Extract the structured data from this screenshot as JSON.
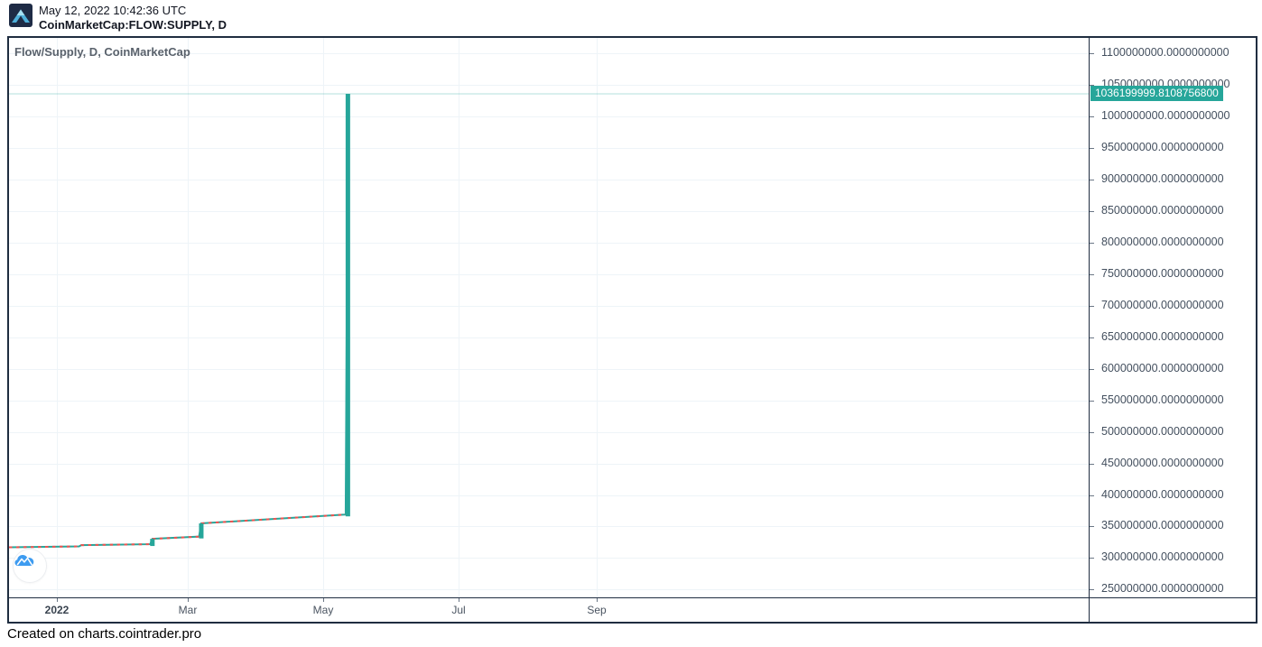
{
  "header": {
    "app_logo_icon": "cointrader-mountain-logo",
    "timestamp": "May 12, 2022 10:42:36 UTC",
    "symbol": "CoinMarketCap:FLOW:SUPPLY, D"
  },
  "chart": {
    "legend": "Flow/Supply, D, CoinMarketCap",
    "price_label": "1036199999.8108756800",
    "watermark_icon": "cointrader-cloud-mountain-logo",
    "y_axis_labels": [
      "1100000000.0000000000",
      "1050000000.0000000000",
      "1000000000.0000000000",
      "950000000.0000000000",
      "900000000.0000000000",
      "850000000.0000000000",
      "800000000.0000000000",
      "750000000.0000000000",
      "700000000.0000000000",
      "650000000.0000000000",
      "600000000.0000000000",
      "550000000.0000000000",
      "500000000.0000000000",
      "450000000.0000000000",
      "400000000.0000000000",
      "350000000.0000000000",
      "300000000.0000000000",
      "250000000.0000000000"
    ],
    "x_axis_ticks": [
      {
        "label": "2022",
        "date": "2022-01-01",
        "emphasis": true
      },
      {
        "label": "Mar",
        "date": "2022-03-01",
        "emphasis": false
      },
      {
        "label": "May",
        "date": "2022-05-01",
        "emphasis": false
      },
      {
        "label": "Jul",
        "date": "2022-07-01",
        "emphasis": false
      },
      {
        "label": "Sep",
        "date": "2022-09-01",
        "emphasis": false
      }
    ],
    "colors": {
      "up": "#26a69a",
      "down": "#ef5350",
      "price_label_bg": "#26a69a",
      "price_line": "rgba(38,166,154,0.35)",
      "grid": "#eef4f8",
      "border": "#1f2d40",
      "axis_text": "#434f5e",
      "watermark_blue": "#3d9bf0"
    }
  },
  "chart_data": {
    "type": "line",
    "title": "Flow/Supply, D, CoinMarketCap",
    "symbol": "CoinMarketCap:FLOW:SUPPLY, D",
    "interval": "D",
    "xlabel": "",
    "ylabel": "",
    "x_ticks": [
      "2022",
      "Mar",
      "May",
      "Jul",
      "Sep"
    ],
    "ylim": [
      238000000,
      1125000000
    ],
    "xlim": [
      "2021-12-10",
      "2023-04-10"
    ],
    "grid": true,
    "legend_position": "top-left",
    "last_value": 1036199999.8108757,
    "last_value_label": "1036199999.8108756800",
    "series": [
      {
        "name": "Flow/Supply",
        "points": [
          [
            "2021-12-10",
            317000000
          ],
          [
            "2022-01-11",
            318500000
          ],
          [
            "2022-01-12",
            320500000
          ],
          [
            "2022-02-12",
            322000000
          ],
          [
            "2022-02-13",
            330500000
          ],
          [
            "2022-03-06",
            334000000
          ],
          [
            "2022-03-07",
            355000000
          ],
          [
            "2022-05-11",
            369000000
          ],
          [
            "2022-05-12",
            1036199999.8108757
          ]
        ]
      }
    ]
  },
  "footer": {
    "credit": "Created on charts.cointrader.pro"
  }
}
